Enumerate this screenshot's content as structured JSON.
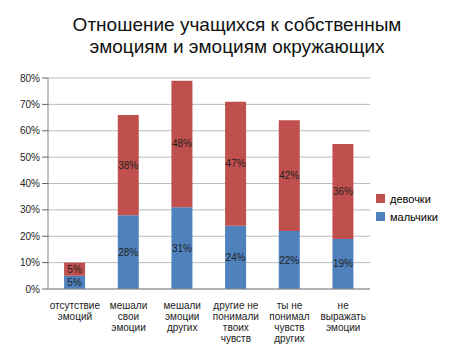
{
  "chart_data": {
    "type": "bar",
    "title": "Отношение учащихся к собственным эмоциям и эмоциям окружающих",
    "categories": [
      "отсутствие эмоций",
      "мешали свои эмоции",
      "мешали эмоции других",
      "другие не понимали твоих чувств",
      "ты не понимал чувств других",
      "не выражать эмоции"
    ],
    "series": [
      {
        "name": "мальчики",
        "color": "#4f81bd",
        "values": [
          5,
          28,
          31,
          24,
          22,
          19
        ],
        "value_labels": [
          "5%",
          "28%",
          "31%",
          "24%",
          "22%",
          "19%"
        ]
      },
      {
        "name": "девочки",
        "color": "#c0504d",
        "values": [
          5,
          38,
          48,
          47,
          42,
          36
        ],
        "value_labels": [
          "5%",
          "38%",
          "48%",
          "47%",
          "42%",
          "36%"
        ]
      }
    ],
    "ylim": [
      0,
      80
    ],
    "yticks": [
      {
        "value": 0,
        "label": "0%"
      },
      {
        "value": 10,
        "label": "10%"
      },
      {
        "value": 20,
        "label": "20%"
      },
      {
        "value": 30,
        "label": "30%"
      },
      {
        "value": 40,
        "label": "40%"
      },
      {
        "value": 50,
        "label": "50%"
      },
      {
        "value": 60,
        "label": "60%"
      },
      {
        "value": 70,
        "label": "70%"
      },
      {
        "value": 80,
        "label": "80%"
      }
    ],
    "grid": true,
    "stacked": true,
    "data_labels": true,
    "legend": "right"
  }
}
